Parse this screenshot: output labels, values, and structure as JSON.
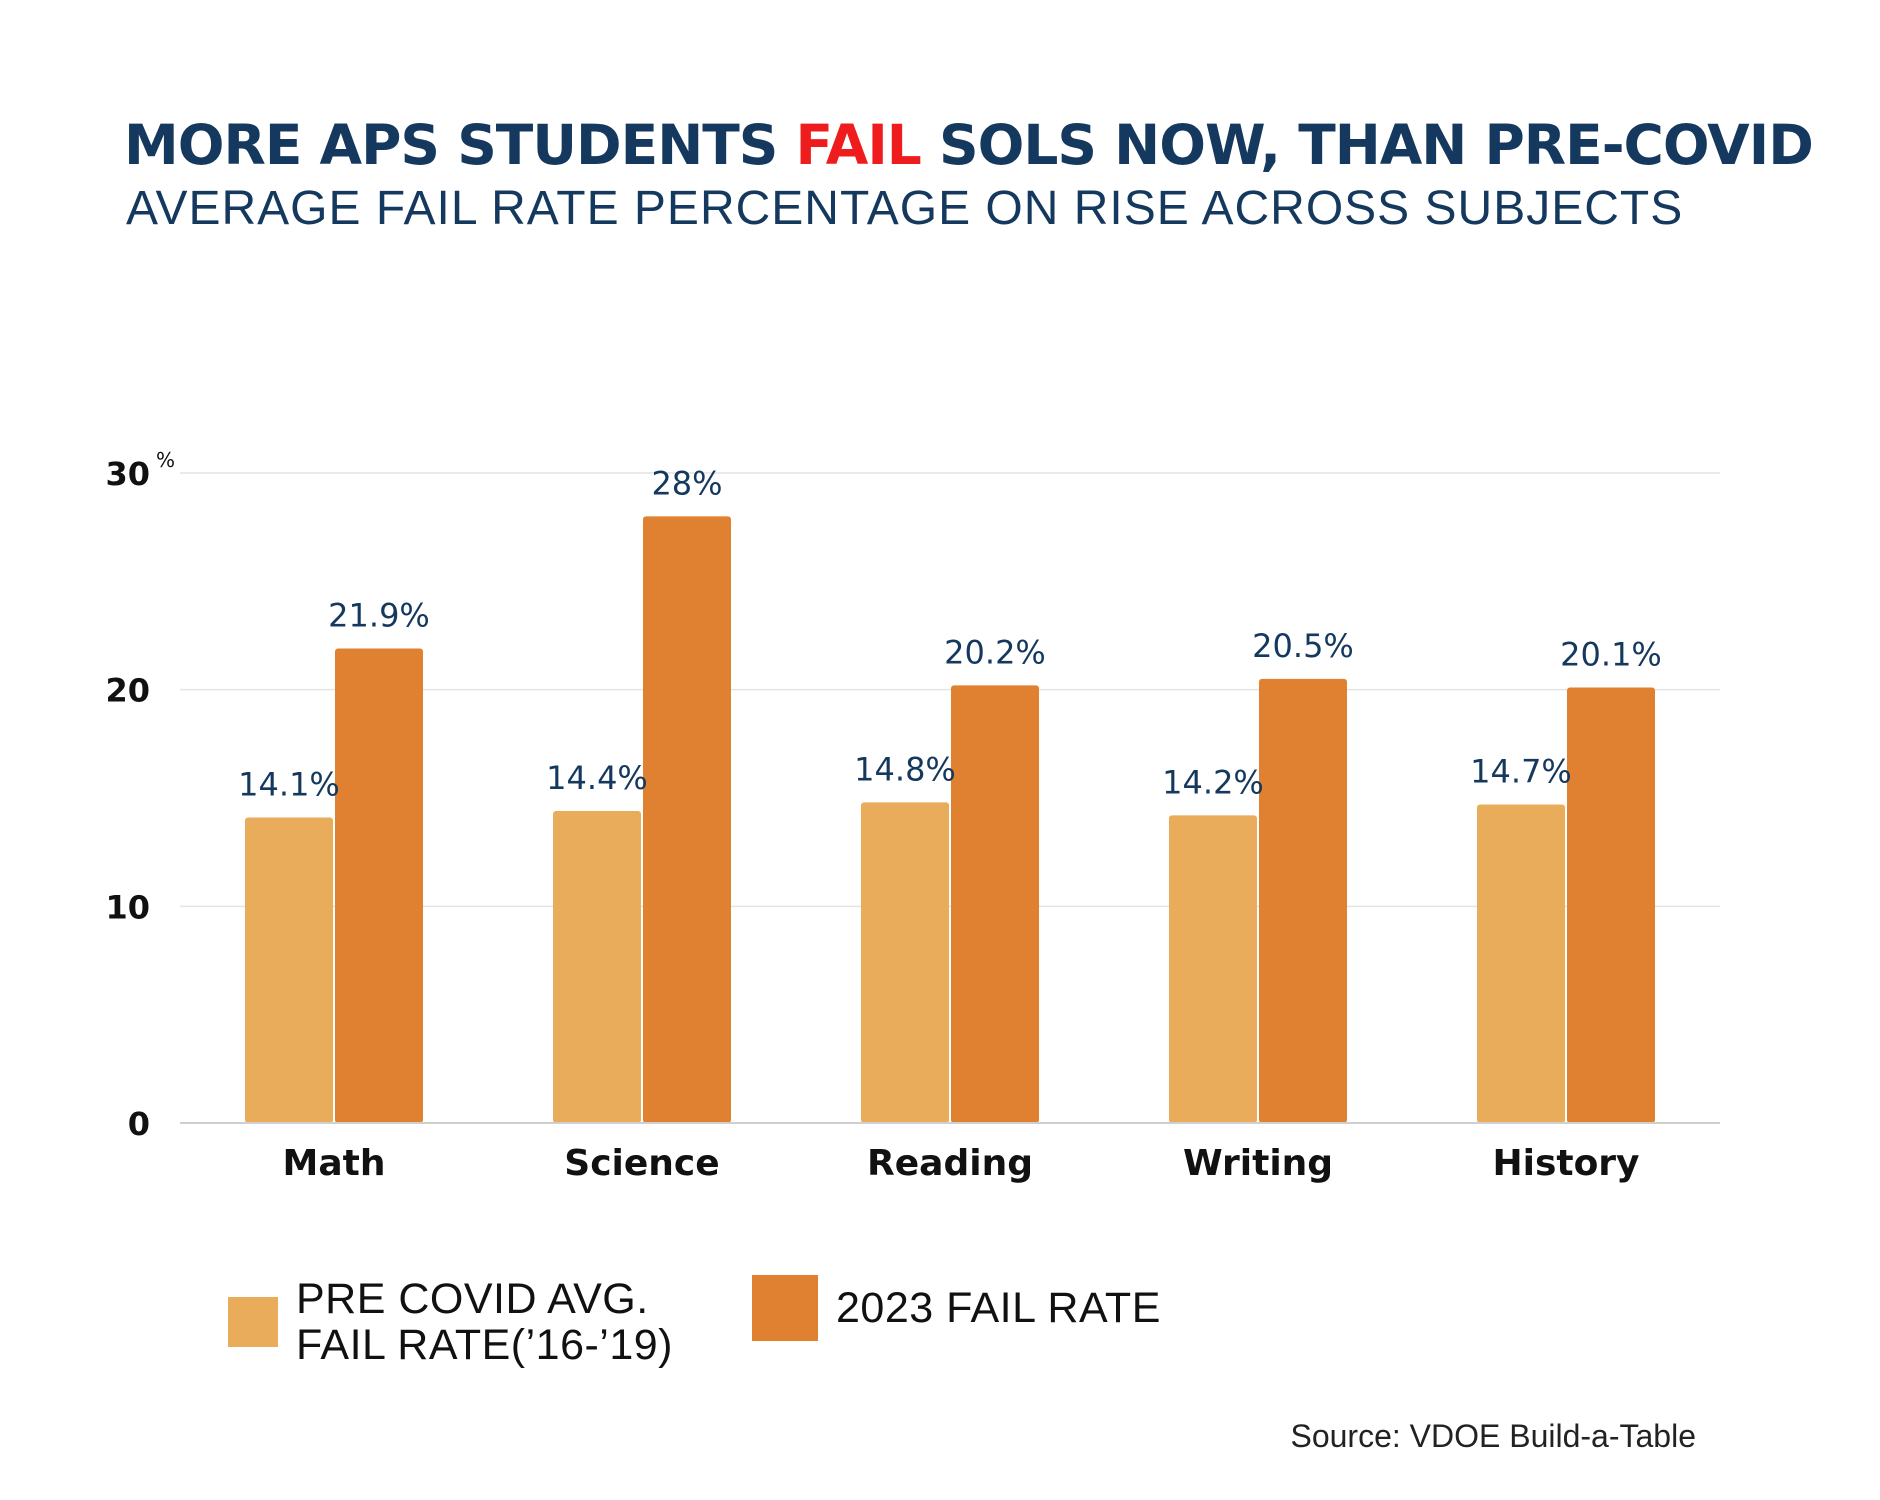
{
  "header": {
    "title_before": "MORE APS STUDENTS ",
    "title_highlight": "FAIL",
    "title_after": " SOLS NOW, THAN PRE-COVID",
    "subtitle": "AVERAGE FAIL RATE PERCENTAGE ON RISE ACROSS SUBJECTS"
  },
  "colors": {
    "title": "#15395e",
    "highlight": "#ee1c1c",
    "pre_covid": "#e8ac5b",
    "fail_2023": "#df8130",
    "data_label": "#15395e",
    "axis_text": "#111111",
    "grid": "#e4e4e4"
  },
  "chart_data": {
    "type": "bar",
    "title": "MORE APS STUDENTS FAIL SOLS NOW, THAN PRE-COVID",
    "subtitle": "AVERAGE FAIL RATE PERCENTAGE ON RISE ACROSS SUBJECTS",
    "categories": [
      "Math",
      "Science",
      "Reading",
      "Writing",
      "History"
    ],
    "series": [
      {
        "name": "PRE COVID AVG. FAIL RATE('16-'19)",
        "values": [
          14.1,
          14.4,
          14.8,
          14.2,
          14.7
        ],
        "labels": [
          "14.1%",
          "14.4%",
          "14.8%",
          "14.2%",
          "14.7%"
        ],
        "color": "#e8ac5b"
      },
      {
        "name": "2023 FAIL RATE",
        "values": [
          21.9,
          28,
          20.2,
          20.5,
          20.1
        ],
        "labels": [
          "21.9%",
          "28%",
          "20.2%",
          "20.5%",
          "20.1%"
        ],
        "color": "#df8130"
      }
    ],
    "yticks": [
      0,
      10,
      20,
      30
    ],
    "ytick_labels": [
      "0",
      "10",
      "20",
      "30"
    ],
    "y_unit_label": "%",
    "ylim": [
      0,
      30
    ],
    "grid": true,
    "legend": "bottom-left"
  },
  "legend": {
    "pre_covid_line1": "PRE COVID AVG.",
    "pre_covid_line2": "FAIL RATE(’16-’19)",
    "fail_2023": "2023 FAIL RATE"
  },
  "source": "Source: VDOE Build-a-Table"
}
